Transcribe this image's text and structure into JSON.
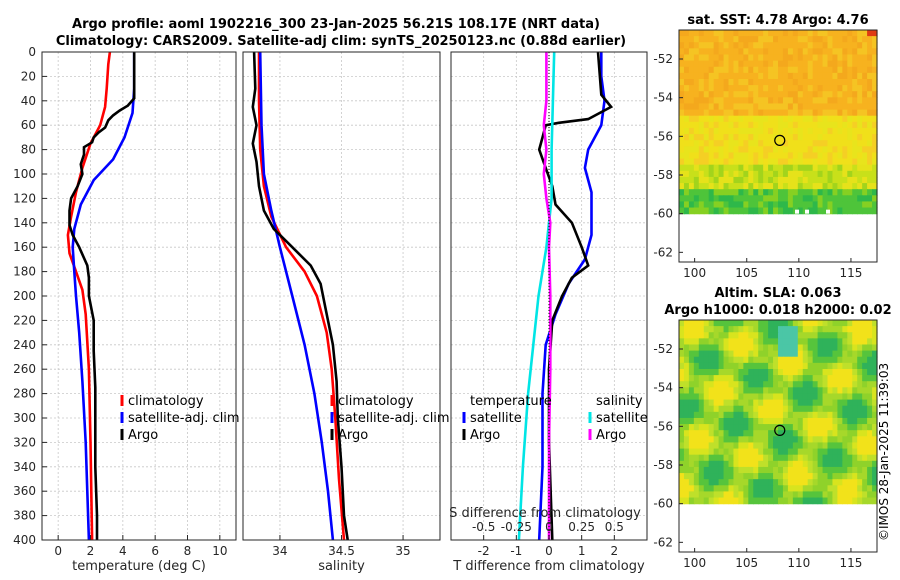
{
  "title": {
    "line1": "Argo profile: aoml 1902216_300 23-Jan-2025 56.21S 108.17E (NRT data)",
    "line2": "Climatology: CARS2009. Satellite-adj clim: synTS_20250123.nc (0.88d earlier)"
  },
  "watermark": "©IMOS 28-Jan-2025 11:39:03",
  "colors": {
    "climatology": "#ff0000",
    "satellite": "#0000ff",
    "argo": "#000000",
    "sal_sat": "#00e5e5",
    "sal_argo": "#ff00ff"
  },
  "chart_data": [
    {
      "type": "line",
      "name": "temperature-profile",
      "xlabel": "temperature (deg C)",
      "ylabel": "",
      "xlim": [
        -1,
        11
      ],
      "ylim": [
        400,
        0
      ],
      "xticks": [
        "0",
        "2",
        "4",
        "6",
        "8",
        "10"
      ],
      "yticks": [
        "0",
        "20",
        "40",
        "60",
        "80",
        "100",
        "120",
        "140",
        "160",
        "180",
        "200",
        "220",
        "240",
        "260",
        "280",
        "300",
        "320",
        "340",
        "360",
        "380",
        "400"
      ],
      "legend": [
        "climatology",
        "satellite-adj. clim",
        "Argo"
      ],
      "series": [
        {
          "name": "climatology",
          "color": "#ff0000",
          "points": [
            [
              3.2,
              0
            ],
            [
              3.1,
              10
            ],
            [
              3.0,
              30
            ],
            [
              2.9,
              45
            ],
            [
              2.6,
              60
            ],
            [
              2.0,
              75
            ],
            [
              1.5,
              95
            ],
            [
              1.1,
              115
            ],
            [
              0.8,
              135
            ],
            [
              0.6,
              150
            ],
            [
              0.7,
              165
            ],
            [
              1.1,
              180
            ],
            [
              1.5,
              195
            ],
            [
              1.7,
              215
            ],
            [
              1.9,
              260
            ],
            [
              2.0,
              320
            ],
            [
              2.1,
              400
            ]
          ]
        },
        {
          "name": "satellite-adj. clim",
          "color": "#0000ff",
          "points": [
            [
              4.7,
              0
            ],
            [
              4.7,
              30
            ],
            [
              4.6,
              50
            ],
            [
              4.1,
              70
            ],
            [
              3.4,
              88
            ],
            [
              2.2,
              105
            ],
            [
              1.4,
              125
            ],
            [
              1.0,
              145
            ],
            [
              0.9,
              160
            ],
            [
              1.0,
              180
            ],
            [
              1.1,
              200
            ],
            [
              1.3,
              230
            ],
            [
              1.5,
              270
            ],
            [
              1.7,
              320
            ],
            [
              1.8,
              360
            ],
            [
              1.9,
              400
            ]
          ]
        },
        {
          "name": "Argo",
          "color": "#000000",
          "points": [
            [
              4.7,
              0
            ],
            [
              4.7,
              38
            ],
            [
              4.3,
              44
            ],
            [
              3.8,
              48
            ],
            [
              3.4,
              52
            ],
            [
              3.1,
              56
            ],
            [
              2.9,
              62
            ],
            [
              2.5,
              66
            ],
            [
              2.2,
              70
            ],
            [
              2.1,
              74
            ],
            [
              1.6,
              78
            ],
            [
              1.6,
              84
            ],
            [
              1.4,
              92
            ],
            [
              1.5,
              100
            ],
            [
              1.2,
              110
            ],
            [
              0.8,
              120
            ],
            [
              0.7,
              130
            ],
            [
              0.7,
              142
            ],
            [
              0.9,
              150
            ],
            [
              1.3,
              160
            ],
            [
              1.8,
              175
            ],
            [
              1.9,
              185
            ],
            [
              1.9,
              200
            ],
            [
              2.2,
              220
            ],
            [
              2.2,
              245
            ],
            [
              2.3,
              275
            ],
            [
              2.3,
              300
            ],
            [
              2.3,
              340
            ],
            [
              2.4,
              380
            ],
            [
              2.4,
              400
            ]
          ]
        }
      ]
    },
    {
      "type": "line",
      "name": "salinity-profile",
      "xlabel": "salinity",
      "xlim": [
        33.7,
        35.3
      ],
      "ylim": [
        400,
        0
      ],
      "xticks": [
        "34",
        "34.5",
        "35"
      ],
      "legend": [
        "climatology",
        "satellite-adj. clim",
        "Argo"
      ],
      "series": [
        {
          "name": "climatology",
          "color": "#ff0000",
          "points": [
            [
              33.83,
              0
            ],
            [
              33.83,
              40
            ],
            [
              33.84,
              80
            ],
            [
              33.87,
              110
            ],
            [
              33.93,
              135
            ],
            [
              34.05,
              160
            ],
            [
              34.2,
              180
            ],
            [
              34.3,
              200
            ],
            [
              34.38,
              230
            ],
            [
              34.42,
              260
            ],
            [
              34.45,
              300
            ],
            [
              34.48,
              350
            ],
            [
              34.52,
              400
            ]
          ]
        },
        {
          "name": "satellite-adj. clim",
          "color": "#0000ff",
          "points": [
            [
              33.84,
              0
            ],
            [
              33.85,
              60
            ],
            [
              33.87,
              100
            ],
            [
              33.93,
              130
            ],
            [
              34.0,
              160
            ],
            [
              34.1,
              200
            ],
            [
              34.2,
              240
            ],
            [
              34.28,
              280
            ],
            [
              34.34,
              320
            ],
            [
              34.39,
              360
            ],
            [
              34.43,
              400
            ]
          ]
        },
        {
          "name": "Argo",
          "color": "#000000",
          "points": [
            [
              33.79,
              0
            ],
            [
              33.8,
              30
            ],
            [
              33.78,
              45
            ],
            [
              33.81,
              60
            ],
            [
              33.78,
              75
            ],
            [
              33.81,
              90
            ],
            [
              33.83,
              110
            ],
            [
              33.87,
              130
            ],
            [
              33.95,
              145
            ],
            [
              34.1,
              160
            ],
            [
              34.25,
              175
            ],
            [
              34.33,
              190
            ],
            [
              34.37,
              210
            ],
            [
              34.43,
              240
            ],
            [
              34.46,
              270
            ],
            [
              34.47,
              300
            ],
            [
              34.5,
              340
            ],
            [
              34.52,
              380
            ],
            [
              34.55,
              400
            ]
          ]
        }
      ]
    },
    {
      "type": "line",
      "name": "difference-profile",
      "xlabel": "T difference from climatology",
      "xlabel_top": "S difference from climatology",
      "xlim": [
        -3,
        3
      ],
      "ylim": [
        400,
        0
      ],
      "xticks": [
        "-2",
        "-1",
        "0",
        "1",
        "2"
      ],
      "xticks_top": [
        "-0.5",
        "-0.25",
        "0",
        "0.25",
        "0.5"
      ],
      "legend_temperature": [
        "temperature",
        "satellite",
        "Argo"
      ],
      "legend_salinity": [
        "salinity",
        "satellite",
        "Argo"
      ],
      "series": [
        {
          "name": "temperature satellite",
          "color": "#0000ff",
          "points": [
            [
              1.6,
              0
            ],
            [
              1.6,
              20
            ],
            [
              1.7,
              40
            ],
            [
              1.6,
              60
            ],
            [
              1.2,
              80
            ],
            [
              1.1,
              95
            ],
            [
              1.3,
              115
            ],
            [
              1.3,
              130
            ],
            [
              1.3,
              150
            ],
            [
              1.1,
              170
            ],
            [
              0.6,
              190
            ],
            [
              0.2,
              215
            ],
            [
              -0.1,
              240
            ],
            [
              -0.2,
              280
            ],
            [
              -0.2,
              340
            ],
            [
              -0.3,
              400
            ]
          ]
        },
        {
          "name": "temperature Argo",
          "color": "#000000",
          "points": [
            [
              1.5,
              0
            ],
            [
              1.6,
              35
            ],
            [
              1.9,
              45
            ],
            [
              1.2,
              55
            ],
            [
              0.3,
              58
            ],
            [
              -0.1,
              60
            ],
            [
              -0.2,
              70
            ],
            [
              -0.3,
              80
            ],
            [
              -0.1,
              95
            ],
            [
              0.1,
              110
            ],
            [
              0.2,
              125
            ],
            [
              0.7,
              140
            ],
            [
              1.0,
              160
            ],
            [
              1.2,
              175
            ],
            [
              0.7,
              185
            ],
            [
              0.4,
              200
            ],
            [
              0.1,
              220
            ],
            [
              0.0,
              260
            ],
            [
              0.0,
              320
            ],
            [
              0.1,
              400
            ]
          ]
        },
        {
          "name": "salinity satellite",
          "color": "#00e5e5",
          "points": [
            [
              0.04,
              0
            ],
            [
              0.03,
              40
            ],
            [
              0.02,
              80
            ],
            [
              0.02,
              120
            ],
            [
              -0.02,
              160
            ],
            [
              -0.08,
              200
            ],
            [
              -0.12,
              240
            ],
            [
              -0.16,
              280
            ],
            [
              -0.2,
              340
            ],
            [
              -0.23,
              400
            ]
          ]
        },
        {
          "name": "salinity Argo",
          "color": "#ff00ff",
          "points": [
            [
              -0.02,
              0
            ],
            [
              -0.02,
              40
            ],
            [
              -0.04,
              60
            ],
            [
              -0.02,
              80
            ],
            [
              -0.04,
              100
            ],
            [
              -0.02,
              120
            ],
            [
              0.01,
              140
            ],
            [
              0.0,
              160
            ],
            [
              0.01,
              200
            ],
            [
              0.01,
              260
            ],
            [
              0.0,
              320
            ],
            [
              0.0,
              400
            ]
          ]
        }
      ]
    },
    {
      "type": "heatmap",
      "name": "sst-map",
      "title": "sat. SST: 4.78 Argo: 4.76",
      "xlim": [
        98.5,
        117.5
      ],
      "ylim": [
        -62.5,
        -50.5
      ],
      "xticks": [
        "100",
        "105",
        "110",
        "115"
      ],
      "yticks": [
        "-52",
        "-54",
        "-56",
        "-58",
        "-60",
        "-62"
      ],
      "marker": [
        108.17,
        -56.21
      ]
    },
    {
      "type": "heatmap",
      "name": "sla-map",
      "title_line1": "Altim. SLA: 0.063",
      "title_line2": "Argo h1000: 0.018 h2000: 0.02",
      "xlim": [
        98.5,
        117.5
      ],
      "ylim": [
        -62.5,
        -50.5
      ],
      "xticks": [
        "100",
        "105",
        "110",
        "115"
      ],
      "yticks": [
        "-52",
        "-54",
        "-56",
        "-58",
        "-60",
        "-62"
      ],
      "marker": [
        108.17,
        -56.21
      ]
    }
  ]
}
